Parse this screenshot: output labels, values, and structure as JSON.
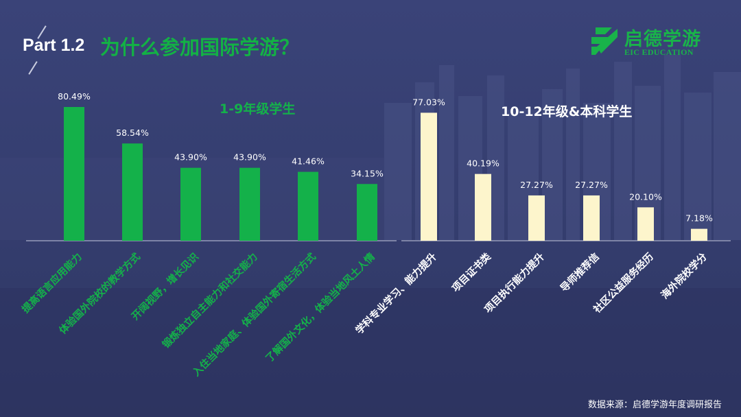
{
  "header": {
    "part_label": "Part 1.2",
    "title": "为什么参加国际学游？"
  },
  "logo": {
    "name_cn": "启德学游",
    "name_en": "EIC EDUCATION",
    "icon": "eic-leaf-logo-icon",
    "color": "#19b34a"
  },
  "footer": {
    "source": "数据来源：启德学游年度调研报告"
  },
  "colors": {
    "background": "#353e70",
    "green": "#14b14a",
    "cream": "#fdf5cc",
    "axis": "#c8cbe0"
  },
  "chart_data": [
    {
      "type": "bar",
      "title": "1-9年级学生",
      "categories": [
        "提高语言应用能力",
        "体验国外院校的教学方式",
        "开阔视野，增长见识",
        "锻炼独立自主能力和社交能力",
        "入住当地家庭、体验国外寄宿生活方式",
        "了解国外文化，体验当地风土人情"
      ],
      "values": [
        80.49,
        58.54,
        43.9,
        43.9,
        41.46,
        34.15
      ],
      "value_labels": [
        "80.49%",
        "58.54%",
        "43.90%",
        "43.90%",
        "41.46%",
        "34.15%"
      ],
      "ylim": [
        0,
        100
      ],
      "bar_color": "#14b14a",
      "label_color": "#14b14a",
      "grid": false
    },
    {
      "type": "bar",
      "title": "10-12年级&本科学生",
      "categories": [
        "学科专业学习、能力提升",
        "项目证书类",
        "项目执行能力提升",
        "导师推荐信",
        "社区公益服务经历",
        "海外院校学分"
      ],
      "values": [
        77.03,
        40.19,
        27.27,
        27.27,
        20.1,
        7.18
      ],
      "value_labels": [
        "77.03%",
        "40.19%",
        "27.27%",
        "27.27%",
        "20.10%",
        "7.18%"
      ],
      "ylim": [
        0,
        100
      ],
      "bar_color": "#fdf5cc",
      "label_color": "#ffffff",
      "grid": false
    }
  ]
}
